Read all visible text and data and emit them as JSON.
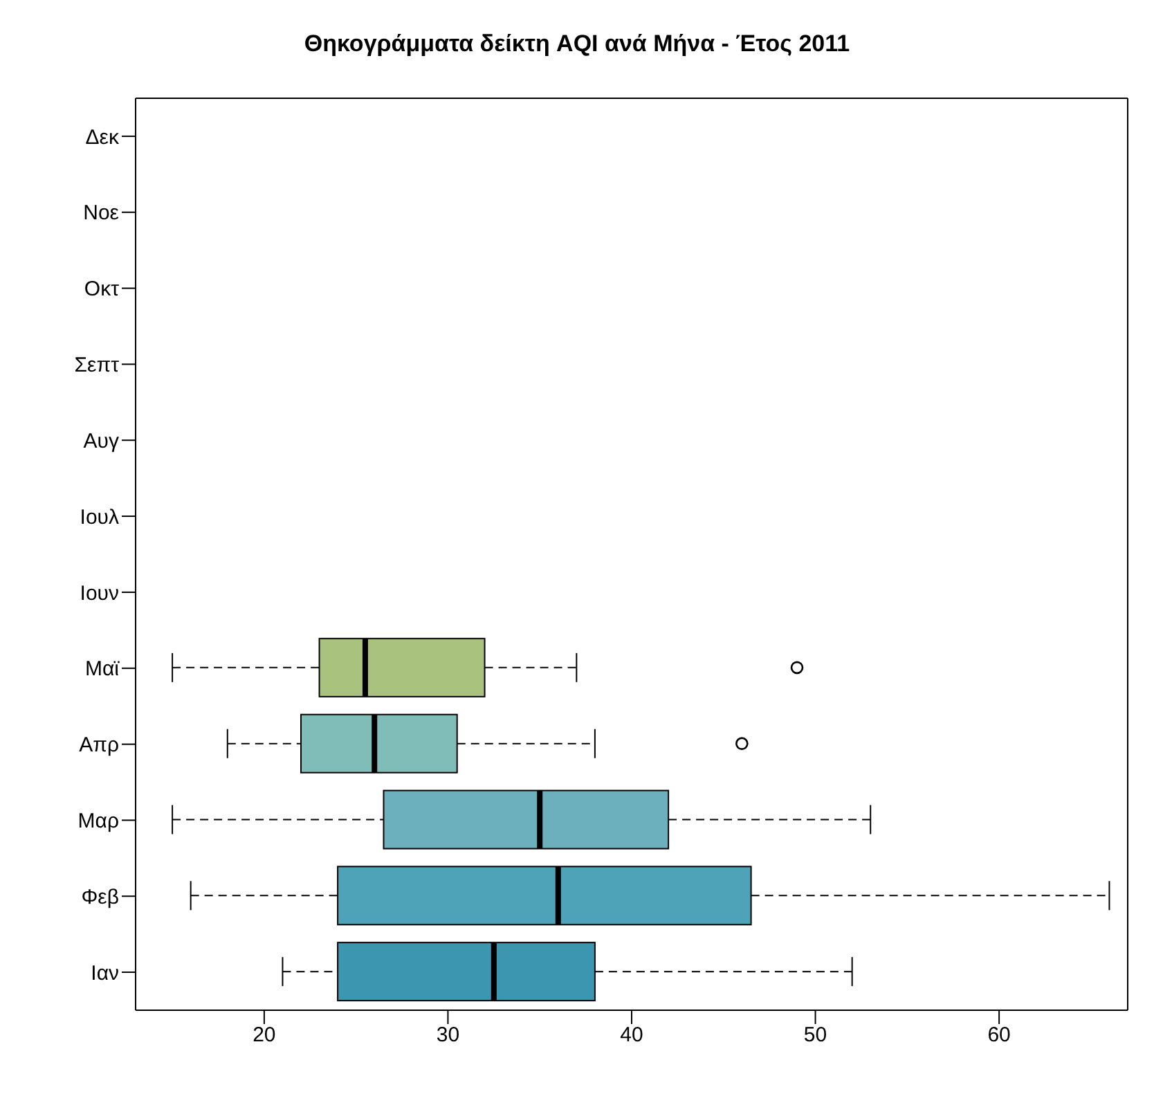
{
  "chart_data": {
    "type": "box",
    "title": "Θηκογράμματα δείκτη AQI ανά Μήνα - Έτος 2011",
    "orientation": "horizontal",
    "categories": [
      "Δεκ",
      "Νοε",
      "Οκτ",
      "Σεπτ",
      "Αυγ",
      "Ιουλ",
      "Ιουν",
      "Μαϊ",
      "Απρ",
      "Μαρ",
      "Φεβ",
      "Ιαν"
    ],
    "boxes": [
      null,
      null,
      null,
      null,
      null,
      null,
      null,
      {
        "low": 15,
        "q1": 23,
        "median": 25.5,
        "q3": 32,
        "high": 37,
        "outliers": [
          49
        ]
      },
      {
        "low": 18,
        "q1": 22,
        "median": 26,
        "q3": 30.5,
        "high": 38,
        "outliers": [
          46
        ]
      },
      {
        "low": 15,
        "q1": 26.5,
        "median": 35,
        "q3": 42,
        "high": 53
      },
      {
        "low": 16,
        "q1": 24,
        "median": 36,
        "q3": 46.5,
        "high": 66
      },
      {
        "low": 21,
        "q1": 24,
        "median": 32.5,
        "q3": 38,
        "high": 52
      }
    ],
    "colors": [
      null,
      null,
      null,
      null,
      null,
      null,
      null,
      "#a9c27e",
      "#80bdb8",
      "#6cb0be",
      "#4fa3b8",
      "#3d96b0"
    ],
    "xlim": [
      13,
      67
    ],
    "xticks": [
      20,
      30,
      40,
      50,
      60
    ],
    "grid": false,
    "legend": false
  }
}
